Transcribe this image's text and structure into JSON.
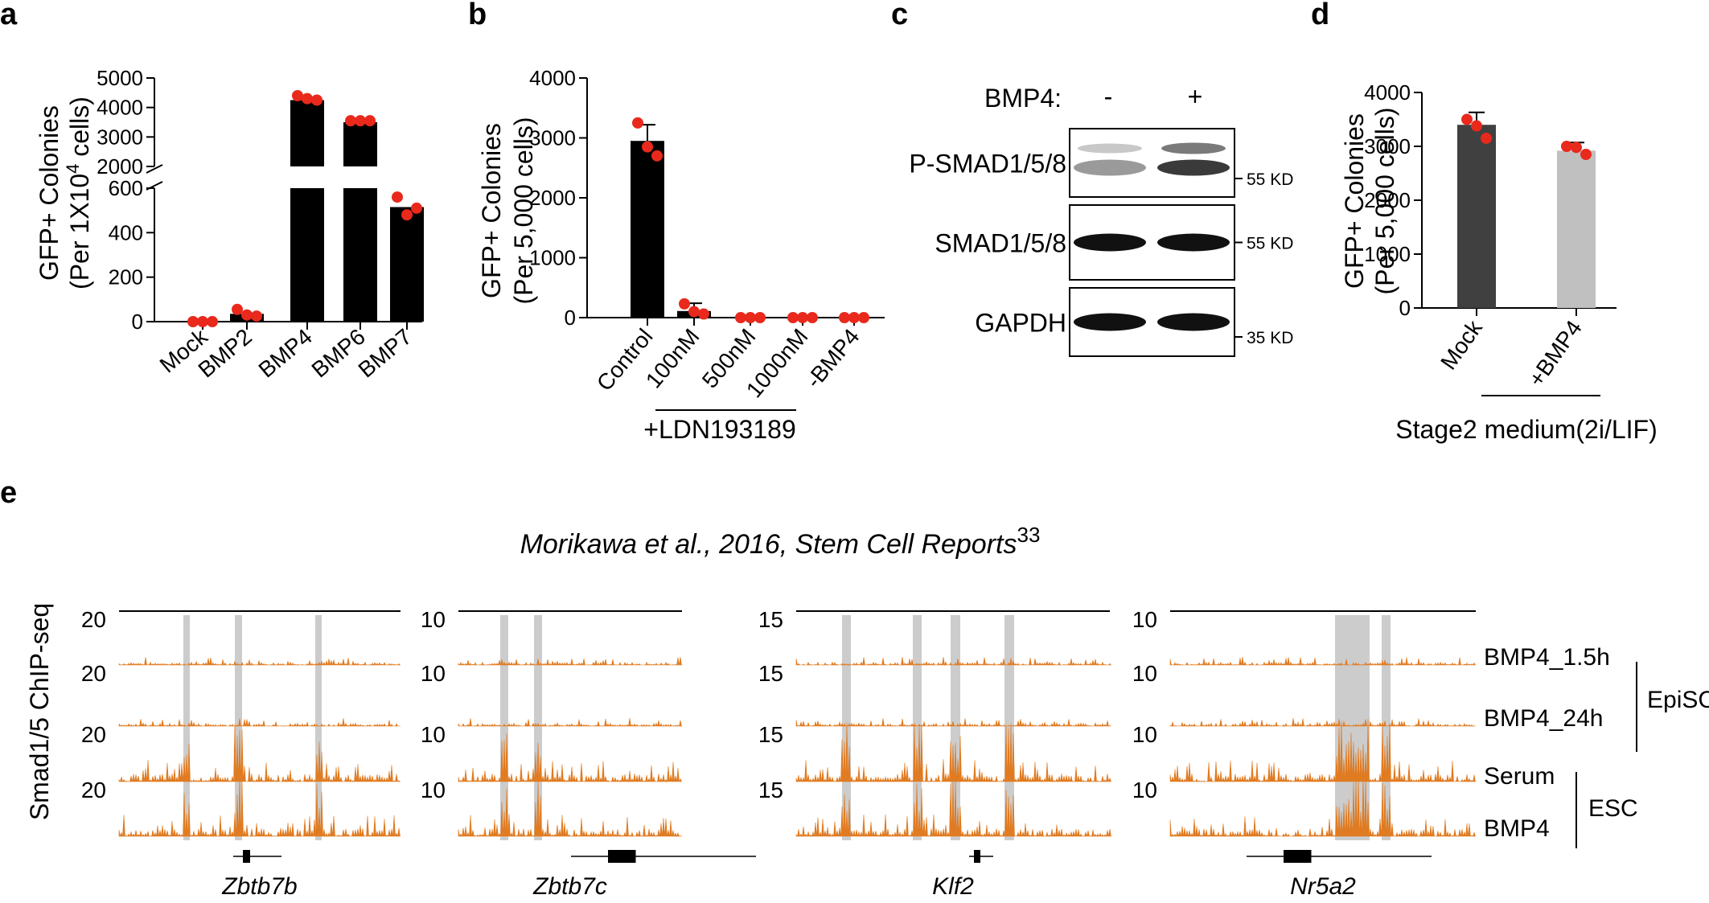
{
  "panel_letters": {
    "a": "a",
    "b": "b",
    "c": "c",
    "d": "d",
    "e": "e"
  },
  "chart_data": [
    {
      "panel": "a",
      "type": "bar",
      "ylabel": "GFP+ Colonies",
      "ylabel2": "(Per 1X10",
      "ylabel2_sup": "4",
      "ylabel2_end": " cells)",
      "categories": [
        "Mock",
        "BMP2",
        "BMP4",
        "BMP6",
        "BMP7"
      ],
      "values": [
        0,
        35,
        4250,
        3500,
        515
      ],
      "points": [
        [
          0,
          0,
          0
        ],
        [
          55,
          30,
          25
        ],
        [
          4400,
          4300,
          4250
        ],
        [
          3550,
          3550,
          3550
        ],
        [
          560,
          480,
          510
        ]
      ],
      "axis_break": [
        600,
        2000
      ],
      "ylim_lower": [
        0,
        600
      ],
      "ylim_upper": [
        2000,
        5000
      ],
      "yticks_lower": [
        0,
        200,
        400,
        600
      ],
      "yticks_upper": [
        2000,
        3000,
        4000,
        5000
      ],
      "bar_color": "#000000",
      "point_color": "#e8291c"
    },
    {
      "panel": "b",
      "type": "bar",
      "ylabel": "GFP+ Colonies",
      "ylabel2": "(Per 5,000 cells)",
      "categories": [
        "Control",
        "100nM",
        "500nM",
        "1000nM",
        "-BMP4"
      ],
      "values": [
        2950,
        110,
        0,
        0,
        0
      ],
      "errors": [
        270,
        130,
        0,
        0,
        0
      ],
      "points": [
        [
          3250,
          2850,
          2700
        ],
        [
          230,
          100,
          60
        ],
        [
          0,
          0,
          0
        ],
        [
          0,
          0,
          0
        ],
        [
          0,
          0,
          0
        ]
      ],
      "ylim": [
        0,
        4000
      ],
      "yticks": [
        0,
        1000,
        2000,
        3000,
        4000
      ],
      "group_label": "+LDN193189",
      "bar_color": "#000000",
      "point_color": "#e8291c"
    },
    {
      "panel": "d",
      "type": "bar",
      "ylabel": "GFP+ Colonies",
      "ylabel2": "(Per 5,000 cells)",
      "categories": [
        "Mock",
        "+BMP4"
      ],
      "values": [
        3400,
        2920
      ],
      "errors": [
        230,
        150
      ],
      "points": [
        [
          3500,
          3380,
          3150
        ],
        [
          3000,
          2980,
          2850
        ]
      ],
      "ylim": [
        0,
        4000
      ],
      "yticks": [
        0,
        1000,
        2000,
        3000,
        4000
      ],
      "group_label": "Stage2 medium(2i/LIF)",
      "bar_colors": [
        "#404040",
        "#c0c0c0"
      ],
      "point_color": "#e8291c"
    }
  ],
  "western": {
    "bmp4_label": "BMP4:",
    "lanes": [
      "-",
      "+"
    ],
    "rows": [
      {
        "label": "P-SMAD1/5/8",
        "kd": "55 KD"
      },
      {
        "label": "SMAD1/5/8",
        "kd": "55 KD"
      },
      {
        "label": "GAPDH",
        "kd": "35 KD"
      }
    ]
  },
  "tracks": {
    "title": "Morikawa et al., 2016, Stem Cell Reports",
    "title_sup": "33",
    "ylabel": "Smad1/5 ChIP-seq",
    "track_color": "#e07b21",
    "highlight_color": "#cccccc",
    "loci": [
      {
        "gene": "Zbtb7b",
        "scales": [
          "20",
          "20",
          "20",
          "20"
        ]
      },
      {
        "gene": "Zbtb7c",
        "scales": [
          "10",
          "10",
          "10",
          "10"
        ]
      },
      {
        "gene": "Klf2",
        "scales": [
          "15",
          "15",
          "15",
          "15"
        ]
      },
      {
        "gene": "Nr5a2",
        "scales": [
          "10",
          "10",
          "10",
          "10"
        ]
      }
    ],
    "rows": [
      "BMP4_1.5h",
      "BMP4_24h",
      "Serum",
      "BMP4"
    ],
    "groups": [
      {
        "label": "EpiSC"
      },
      {
        "label": "ESC"
      }
    ]
  }
}
